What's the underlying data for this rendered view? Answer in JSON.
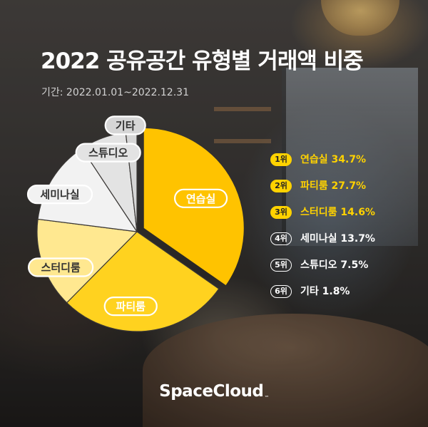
{
  "title": "2022 공유공간 유형별 거래액 비중",
  "period": "기간: 2022.01.01~2022.12.31",
  "brand": {
    "name": "SpaceCloud",
    "tm": "™"
  },
  "colors": {
    "hi": "#ffd200",
    "lo": "#ffffff"
  },
  "chart_data": {
    "type": "pie",
    "title": "2022 공유공간 유형별 거래액 비중",
    "unit": "%",
    "slices": [
      {
        "label": "연습실",
        "value": 34.7,
        "rank": "1위",
        "color": "#ffc300",
        "exploded": true
      },
      {
        "label": "파티룸",
        "value": 27.7,
        "rank": "2위",
        "color": "#ffd21f"
      },
      {
        "label": "스터디룸",
        "value": 14.6,
        "rank": "3위",
        "color": "#ffe890"
      },
      {
        "label": "세미나실",
        "value": 13.7,
        "rank": "4위",
        "color": "#f2f2f2"
      },
      {
        "label": "스튜디오",
        "value": 7.5,
        "rank": "5위",
        "color": "#e3e3e3"
      },
      {
        "label": "기타",
        "value": 1.8,
        "rank": "6위",
        "color": "#d6d6d6"
      }
    ]
  },
  "legend": [
    {
      "rank": "1위",
      "text": "연습실 34.7%",
      "highlight": true
    },
    {
      "rank": "2위",
      "text": "파티룸 27.7%",
      "highlight": true
    },
    {
      "rank": "3위",
      "text": "스터디룸 14.6%",
      "highlight": true
    },
    {
      "rank": "4위",
      "text": "세미나실 13.7%",
      "highlight": false
    },
    {
      "rank": "5위",
      "text": "스튜디오 7.5%",
      "highlight": false
    },
    {
      "rank": "6위",
      "text": "기타 1.8%",
      "highlight": false
    }
  ]
}
